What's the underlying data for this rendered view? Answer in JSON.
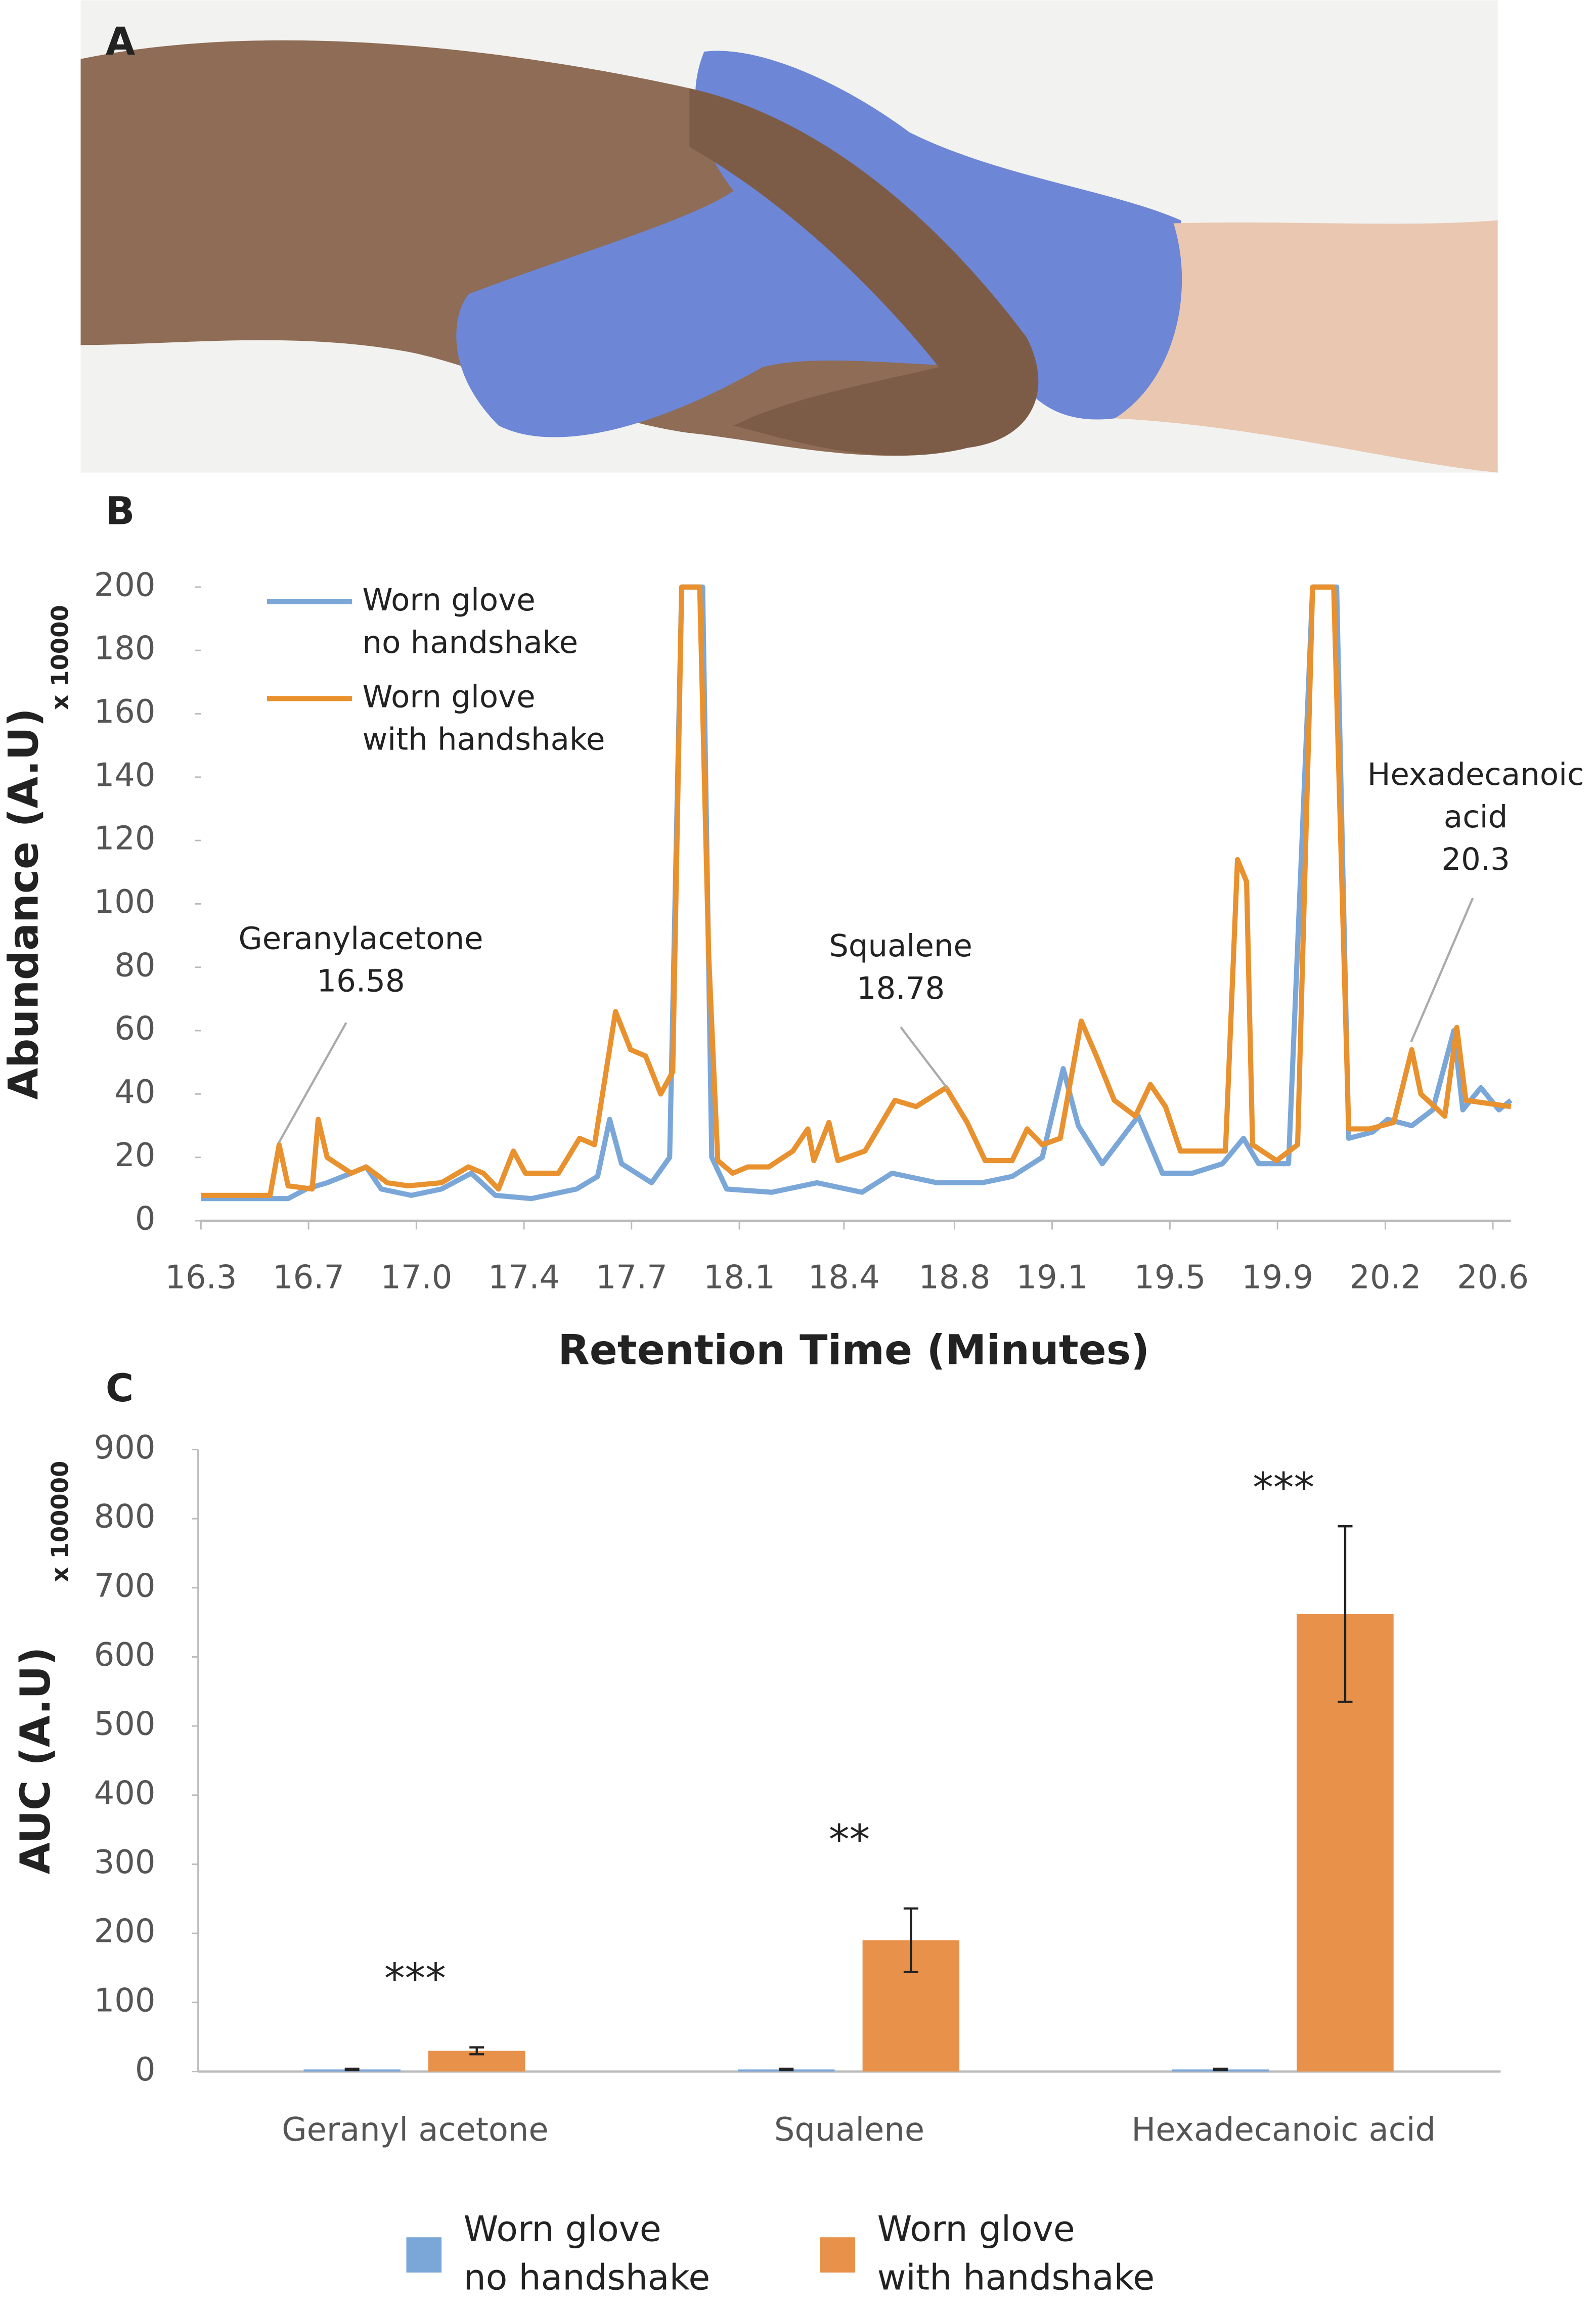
{
  "figure_labels": [
    "A",
    "B",
    "C"
  ],
  "chart_data": [
    {
      "type": "line",
      "x_label": "Retention Time (Minutes)",
      "y_label": "Abundance (A.U)",
      "y_multiplier": "x 10000",
      "xlim": [
        16.3,
        20.66
      ],
      "ylim": [
        0,
        200
      ],
      "xticks": [
        16.3,
        {
          "value": 16.658,
          "label": "16.7"
        },
        {
          "value": 17.017,
          "label": "17.0"
        },
        {
          "value": 17.375,
          "label": "17.4"
        },
        {
          "value": 17.733,
          "label": "17.7"
        },
        {
          "value": 18.092,
          "label": "18.1"
        },
        {
          "value": 18.44,
          "label": "18.4"
        },
        {
          "value": 18.808,
          "label": "18.8"
        },
        {
          "value": 19.133,
          "label": "19.1"
        },
        {
          "value": 19.525,
          "label": "19.5"
        },
        {
          "value": 19.883,
          "label": "19.9"
        },
        {
          "value": 20.242,
          "label": "20.2"
        },
        20.6
      ],
      "yticks": [
        0,
        20,
        40,
        60,
        80,
        100,
        120,
        140,
        160,
        180,
        200
      ],
      "legend": "upper left",
      "annotations": [
        {
          "text": "Geranylacetone",
          "x": 16.58
        },
        {
          "text": "Squalene",
          "x": 18.78
        },
        {
          "text": "Hexadecanoic\nacid",
          "x": 20.3
        }
      ],
      "series": [
        {
          "name": "Worn glove\nno handshake",
          "color": "#7ba7d8",
          "x": [
            16.3,
            16.59,
            16.65,
            16.72,
            16.8,
            16.85,
            16.9,
            17.0,
            17.1,
            17.2,
            17.28,
            17.4,
            17.55,
            17.62,
            17.66,
            17.7,
            17.8,
            17.86,
            17.9,
            17.97,
            18.0,
            18.05,
            18.2,
            18.35,
            18.5,
            18.6,
            18.75,
            18.9,
            19.0,
            19.1,
            19.17,
            19.22,
            19.3,
            19.42,
            19.5,
            19.6,
            19.7,
            19.77,
            19.82,
            19.92,
            20.0,
            20.08,
            20.12,
            20.2,
            20.25,
            20.33,
            20.4,
            20.47,
            20.5,
            20.56,
            20.62,
            20.66
          ],
          "values": [
            7,
            7,
            10,
            12,
            15,
            17,
            10,
            8,
            10,
            15,
            8,
            7,
            10,
            14,
            32,
            18,
            12,
            20,
            200,
            200,
            20,
            10,
            9,
            12,
            9,
            15,
            12,
            12,
            14,
            20,
            48,
            30,
            18,
            33,
            15,
            15,
            18,
            26,
            18,
            18,
            200,
            200,
            26,
            28,
            32,
            30,
            35,
            60,
            35,
            42,
            35,
            38
          ]
        },
        {
          "name": "Worn glove\nwith handshake",
          "color": "#e8912e",
          "x": [
            16.3,
            16.53,
            16.56,
            16.59,
            16.67,
            16.69,
            16.72,
            16.8,
            16.85,
            16.92,
            16.99,
            17.1,
            17.19,
            17.24,
            17.29,
            17.34,
            17.38,
            17.49,
            17.56,
            17.61,
            17.68,
            17.73,
            17.78,
            17.83,
            17.87,
            17.9,
            17.96,
            17.99,
            18.02,
            18.07,
            18.12,
            18.19,
            18.27,
            18.32,
            18.34,
            18.39,
            18.42,
            18.51,
            18.61,
            18.68,
            18.78,
            18.85,
            18.91,
            19.0,
            19.05,
            19.1,
            19.16,
            19.23,
            19.28,
            19.34,
            19.41,
            19.46,
            19.51,
            19.56,
            19.71,
            19.75,
            19.78,
            19.8,
            19.88,
            19.95,
            20.0,
            20.07,
            20.12,
            20.19,
            20.27,
            20.33,
            20.36,
            20.44,
            20.48,
            20.51,
            20.66
          ],
          "values": [
            8,
            8,
            24,
            11,
            10,
            32,
            20,
            15,
            17,
            12,
            11,
            12,
            17,
            15,
            10,
            22,
            15,
            15,
            26,
            24,
            66,
            54,
            52,
            40,
            47,
            200,
            200,
            84,
            19,
            15,
            17,
            17,
            22,
            29,
            19,
            31,
            19,
            22,
            38,
            36,
            42,
            31,
            19,
            19,
            29,
            24,
            26,
            63,
            52,
            38,
            33,
            43,
            36,
            22,
            22,
            114,
            107,
            24,
            19,
            24,
            200,
            200,
            29,
            29,
            31,
            54,
            40,
            33,
            61,
            38,
            36
          ]
        }
      ]
    },
    {
      "type": "bar",
      "y_label": "AUC (A.U)",
      "y_multiplier": "x 100000",
      "categories": [
        "Geranyl acetone",
        "Squalene",
        "Hexadecanoic acid"
      ],
      "ylim": [
        0,
        900
      ],
      "yticks": [
        0,
        100,
        200,
        300,
        400,
        500,
        600,
        700,
        800,
        900
      ],
      "legend": "bottom",
      "significance": [
        "***",
        "**",
        "***"
      ],
      "series": [
        {
          "name": "Worn glove\nno handshake",
          "color": "#7ba7d8",
          "values": [
            3,
            3,
            3
          ],
          "errors": [
            1,
            1,
            1
          ]
        },
        {
          "name": "Worn glove\nwith handshake",
          "color": "#e8914a",
          "values": [
            30,
            190,
            662
          ],
          "errors": [
            5,
            46,
            127
          ]
        }
      ]
    }
  ]
}
